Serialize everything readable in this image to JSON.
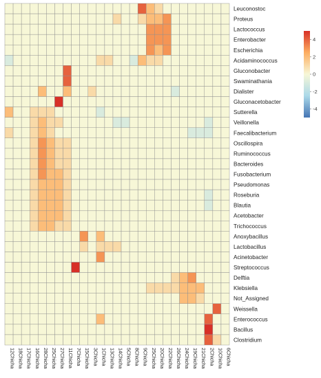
{
  "chart_data": {
    "type": "heatmap",
    "title": "",
    "rows": [
      "Leuconostoc",
      "Proteus",
      "Lactococcus",
      "Enterobacter",
      "Escherichia",
      "Acidaminococcus",
      "Gluconobacter",
      "Swaminathania",
      "Dialister",
      "Gluconacetobacter",
      "Sutterella",
      "Veillonella",
      "Faecalibacterium",
      "Oscillospira",
      "Ruminococcus",
      "Bacteroides",
      "Fusobacterium",
      "Pseudomonas",
      "Roseburia",
      "Blautia",
      "Acetobacter",
      "Trichococcus",
      "Anoxybacillus",
      "Lactobacillus",
      "Acinetobacter",
      "Streptococcus",
      "Delftia",
      "Klebsiella",
      "Not_Assigned",
      "Weissella",
      "Enterococcus",
      "Bacillus",
      "Clostridium"
    ],
    "columns": [
      "12Chicha",
      "18Chicha",
      "17Chicha",
      "16Chicha",
      "28Chicha",
      "25Chicha",
      "27Chicha",
      "11Chicha",
      "7Chicha",
      "15Chicha",
      "3Chicha",
      "1Chicha",
      "13Chicha",
      "14Chicha",
      "5Chicha",
      "8Chicha",
      "9Chicha",
      "25Chicha",
      "20Chicha",
      "22Chicha",
      "26Chicha",
      "24Chicha",
      "19Chicha",
      "21Chicha",
      "2Chicha",
      "10Chicha",
      "6Chicha"
    ],
    "values": [
      [
        0,
        0,
        0,
        0,
        0,
        0,
        0,
        0,
        0,
        0,
        0,
        0,
        0,
        0,
        0,
        0,
        4,
        2,
        1,
        0,
        0,
        0,
        0,
        0,
        0,
        0,
        0
      ],
      [
        0,
        0,
        0,
        0,
        0,
        0,
        0,
        0,
        0,
        0,
        0,
        0,
        0,
        1,
        0,
        0,
        1,
        2,
        2,
        3,
        0,
        0,
        0,
        0,
        0,
        0,
        0
      ],
      [
        0,
        0,
        0,
        0,
        0,
        0,
        0,
        0,
        0,
        0,
        0,
        0,
        0,
        0,
        0,
        0,
        0,
        3,
        3,
        3,
        0,
        0,
        0,
        0,
        0,
        0,
        0
      ],
      [
        0,
        0,
        0,
        0,
        0,
        0,
        0,
        0,
        0,
        0,
        0,
        0,
        0,
        0,
        0,
        0,
        0,
        3,
        3,
        3,
        0,
        0,
        0,
        0,
        0,
        0,
        0
      ],
      [
        0,
        0,
        0,
        0,
        0,
        0,
        0,
        0,
        0,
        0,
        0,
        0,
        0,
        0,
        0,
        0,
        0,
        3,
        2,
        3,
        0,
        0,
        0,
        0,
        0,
        0,
        0
      ],
      [
        -1,
        0,
        0,
        0,
        0,
        0,
        0,
        0,
        0,
        0,
        0,
        1,
        1,
        0,
        0,
        -1,
        2,
        1,
        1,
        0,
        0,
        0,
        0,
        0,
        0,
        0,
        0
      ],
      [
        0,
        0,
        0,
        0,
        0,
        0,
        0,
        4,
        0,
        0,
        0,
        0,
        0,
        0,
        0,
        0,
        0,
        0,
        0,
        0,
        0,
        0,
        0,
        0,
        0,
        0,
        0
      ],
      [
        0,
        0,
        0,
        0,
        0,
        0,
        0,
        4,
        0,
        0,
        0,
        0,
        0,
        0,
        0,
        0,
        0,
        0,
        0,
        0,
        0,
        0,
        0,
        0,
        0,
        0,
        0
      ],
      [
        0,
        0,
        0,
        0,
        2,
        0,
        0,
        2,
        0,
        0,
        1,
        0,
        0,
        0,
        0,
        0,
        0,
        0,
        0,
        0,
        -1,
        0,
        0,
        0,
        0,
        0,
        0
      ],
      [
        0,
        0,
        0,
        0,
        0,
        0,
        5,
        0,
        0,
        0,
        0,
        0,
        0,
        0,
        0,
        0,
        0,
        0,
        0,
        0,
        0,
        0,
        0,
        0,
        0,
        0,
        0
      ],
      [
        2,
        0,
        0,
        1,
        1,
        1,
        0,
        0,
        0,
        0,
        0,
        -1,
        0,
        0,
        0,
        0,
        0,
        0,
        0,
        0,
        0,
        0,
        0,
        0,
        0,
        0,
        0
      ],
      [
        0,
        0,
        0,
        1,
        2,
        1,
        1,
        0,
        0,
        0,
        0,
        0,
        0,
        -1,
        -1,
        0,
        0,
        0,
        0,
        0,
        0,
        0,
        0,
        0,
        -1,
        0,
        0
      ],
      [
        1,
        0,
        0,
        1,
        2,
        1,
        0,
        0,
        0,
        0,
        0,
        0,
        0,
        0,
        0,
        0,
        0,
        0,
        0,
        0,
        0,
        0,
        -1,
        -1,
        -1,
        0,
        0
      ],
      [
        0,
        0,
        0,
        1,
        3,
        2,
        1,
        1,
        0,
        0,
        0,
        0,
        0,
        0,
        0,
        0,
        0,
        0,
        0,
        0,
        0,
        0,
        0,
        0,
        0,
        0,
        0
      ],
      [
        0,
        0,
        0,
        1,
        3,
        2,
        1,
        1,
        0,
        0,
        0,
        0,
        0,
        0,
        0,
        0,
        0,
        0,
        0,
        0,
        0,
        0,
        0,
        0,
        0,
        0,
        0
      ],
      [
        0,
        0,
        0,
        1,
        3,
        2,
        1,
        1,
        0,
        0,
        0,
        0,
        0,
        0,
        0,
        0,
        0,
        0,
        0,
        0,
        0,
        0,
        0,
        0,
        0,
        0,
        0
      ],
      [
        0,
        0,
        0,
        1,
        3,
        2,
        2,
        1,
        0,
        0,
        0,
        0,
        0,
        0,
        0,
        0,
        0,
        0,
        0,
        0,
        0,
        0,
        0,
        0,
        0,
        0,
        0
      ],
      [
        0,
        0,
        0,
        1,
        2,
        2,
        2,
        1,
        0,
        0,
        0,
        0,
        0,
        0,
        0,
        0,
        0,
        0,
        0,
        0,
        0,
        0,
        0,
        0,
        0,
        0,
        0
      ],
      [
        0,
        0,
        0,
        1,
        2,
        2,
        2,
        1,
        0,
        0,
        0,
        0,
        0,
        0,
        0,
        0,
        0,
        0,
        0,
        0,
        0,
        0,
        0,
        0,
        -1,
        0,
        0
      ],
      [
        0,
        0,
        0,
        1,
        2,
        2,
        2,
        1,
        0,
        0,
        0,
        0,
        0,
        0,
        0,
        0,
        0,
        0,
        0,
        0,
        0,
        0,
        0,
        0,
        -1,
        0,
        0
      ],
      [
        0,
        0,
        0,
        1,
        2,
        2,
        2,
        1,
        0,
        0,
        0,
        0,
        0,
        0,
        0,
        0,
        0,
        0,
        0,
        0,
        0,
        0,
        0,
        0,
        0,
        0,
        0
      ],
      [
        0,
        0,
        0,
        1,
        2,
        2,
        1,
        1,
        0,
        0,
        0,
        0,
        0,
        0,
        0,
        0,
        0,
        0,
        0,
        0,
        0,
        0,
        0,
        0,
        0,
        0,
        0
      ],
      [
        0,
        0,
        0,
        0,
        0,
        0,
        0,
        0,
        0,
        3,
        0,
        2,
        0,
        0,
        0,
        0,
        0,
        0,
        0,
        0,
        0,
        0,
        0,
        0,
        0,
        0,
        0
      ],
      [
        0,
        0,
        0,
        0,
        0,
        0,
        0,
        0,
        0,
        1,
        0,
        1,
        1,
        1,
        0,
        0,
        0,
        0,
        0,
        0,
        0,
        0,
        0,
        0,
        0,
        0,
        0
      ],
      [
        0,
        0,
        0,
        0,
        0,
        0,
        0,
        0,
        0,
        0,
        0,
        3,
        0,
        0,
        0,
        0,
        0,
        0,
        0,
        0,
        0,
        0,
        0,
        0,
        0,
        0,
        0
      ],
      [
        0,
        0,
        0,
        0,
        0,
        0,
        0,
        0,
        5,
        0,
        0,
        0,
        0,
        0,
        0,
        0,
        0,
        0,
        0,
        0,
        0,
        0,
        0,
        0,
        0,
        0,
        0
      ],
      [
        0,
        0,
        0,
        0,
        0,
        0,
        0,
        0,
        0,
        0,
        0,
        0,
        0,
        0,
        0,
        0,
        0,
        0,
        0,
        0,
        1,
        2,
        3,
        0,
        0,
        0,
        0
      ],
      [
        0,
        0,
        0,
        0,
        0,
        0,
        0,
        0,
        0,
        0,
        0,
        0,
        0,
        0,
        0,
        0,
        0,
        1,
        1,
        1,
        1,
        2,
        2,
        2,
        0,
        0,
        0
      ],
      [
        0,
        0,
        0,
        0,
        0,
        0,
        0,
        0,
        0,
        0,
        0,
        0,
        0,
        0,
        0,
        0,
        0,
        0,
        0,
        0,
        0,
        2,
        2,
        1,
        0,
        0,
        0
      ],
      [
        0,
        0,
        0,
        0,
        0,
        0,
        0,
        0,
        0,
        0,
        0,
        0,
        0,
        0,
        0,
        0,
        0,
        0,
        0,
        0,
        0,
        0,
        0,
        0,
        0,
        4,
        0
      ],
      [
        0,
        0,
        0,
        0,
        0,
        0,
        0,
        0,
        0,
        0,
        0,
        2,
        0,
        0,
        0,
        0,
        0,
        0,
        0,
        0,
        0,
        0,
        0,
        0,
        4,
        0,
        0
      ],
      [
        0,
        0,
        0,
        0,
        0,
        0,
        0,
        0,
        0,
        0,
        0,
        0,
        0,
        0,
        0,
        0,
        0,
        0,
        0,
        0,
        0,
        0,
        0,
        0,
        5,
        0,
        0
      ],
      [
        0,
        0,
        0,
        0,
        0,
        0,
        0,
        0,
        0,
        0,
        0,
        0,
        0,
        0,
        0,
        0,
        0,
        0,
        0,
        0,
        0,
        0,
        0,
        0,
        4,
        1,
        0
      ]
    ],
    "color_scale": {
      "min": -5,
      "max": 5,
      "ticks": [
        4,
        2,
        0,
        -2,
        -4
      ],
      "tick_labels": [
        "4",
        "2",
        "0",
        "-2",
        "-4"
      ],
      "colors": [
        "#4575b4",
        "#abd9e9",
        "#f7f7d7",
        "#fdae61",
        "#d73027"
      ]
    },
    "grid": true,
    "legend": "right"
  }
}
